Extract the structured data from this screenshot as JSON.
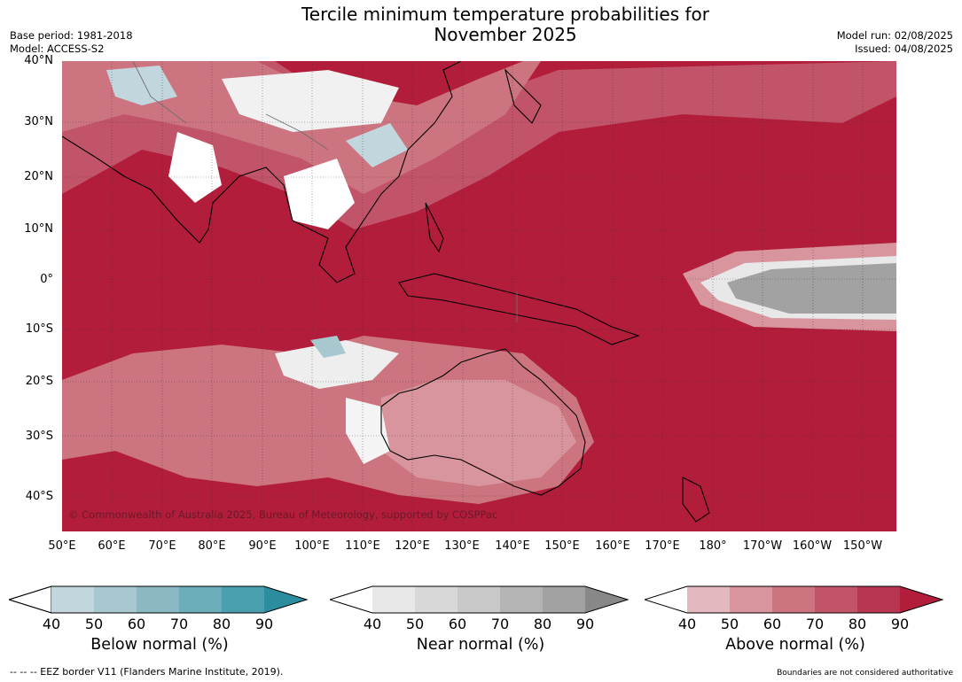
{
  "header": {
    "title_line1": "Tercile minimum temperature probabilities for",
    "title_line2": "November 2025",
    "base_period": "Base period: 1981-2018",
    "model": "Model: ACCESS-S2",
    "model_run": "Model run: 02/08/2025",
    "issued": "Issued: 04/08/2025"
  },
  "map": {
    "lat_labels": [
      "40°N",
      "30°N",
      "20°N",
      "10°N",
      "0°",
      "10°S",
      "20°S",
      "30°S",
      "40°S"
    ],
    "lon_labels": [
      "50°E",
      "60°E",
      "70°E",
      "80°E",
      "90°E",
      "100°E",
      "110°E",
      "120°E",
      "130°E",
      "140°E",
      "150°E",
      "160°E",
      "170°E",
      "180°",
      "170°W",
      "160°W",
      "150°W"
    ],
    "copyright": "© Commonwealth of Australia 2025, Bureau of Meteorology, supported by COSPPac"
  },
  "colorbars": [
    {
      "title": "Below normal (%)",
      "ticks": [
        "40",
        "50",
        "60",
        "70",
        "80",
        "90"
      ],
      "colors": [
        "#c2d6dd",
        "#a8c8cf",
        "#8ab8c3",
        "#6badb9",
        "#4a9fae",
        "#2b8d9e"
      ]
    },
    {
      "title": "Near normal (%)",
      "ticks": [
        "40",
        "50",
        "60",
        "70",
        "80",
        "90"
      ],
      "colors": [
        "#e8e8e8",
        "#d8d8d8",
        "#c8c8c8",
        "#b4b4b4",
        "#a2a2a2",
        "#888888"
      ]
    },
    {
      "title": "Above normal (%)",
      "ticks": [
        "40",
        "50",
        "60",
        "70",
        "80",
        "90"
      ],
      "colors": [
        "#e3b9bf",
        "#d8959d",
        "#cc7580",
        "#c2546a",
        "#b83651",
        "#b31d3c"
      ]
    }
  ],
  "footer": {
    "eez": "--  --  -- EEZ border V11 (Flanders Marine Institute, 2019).",
    "boundaries": "Boundaries are not considered authoritative"
  }
}
